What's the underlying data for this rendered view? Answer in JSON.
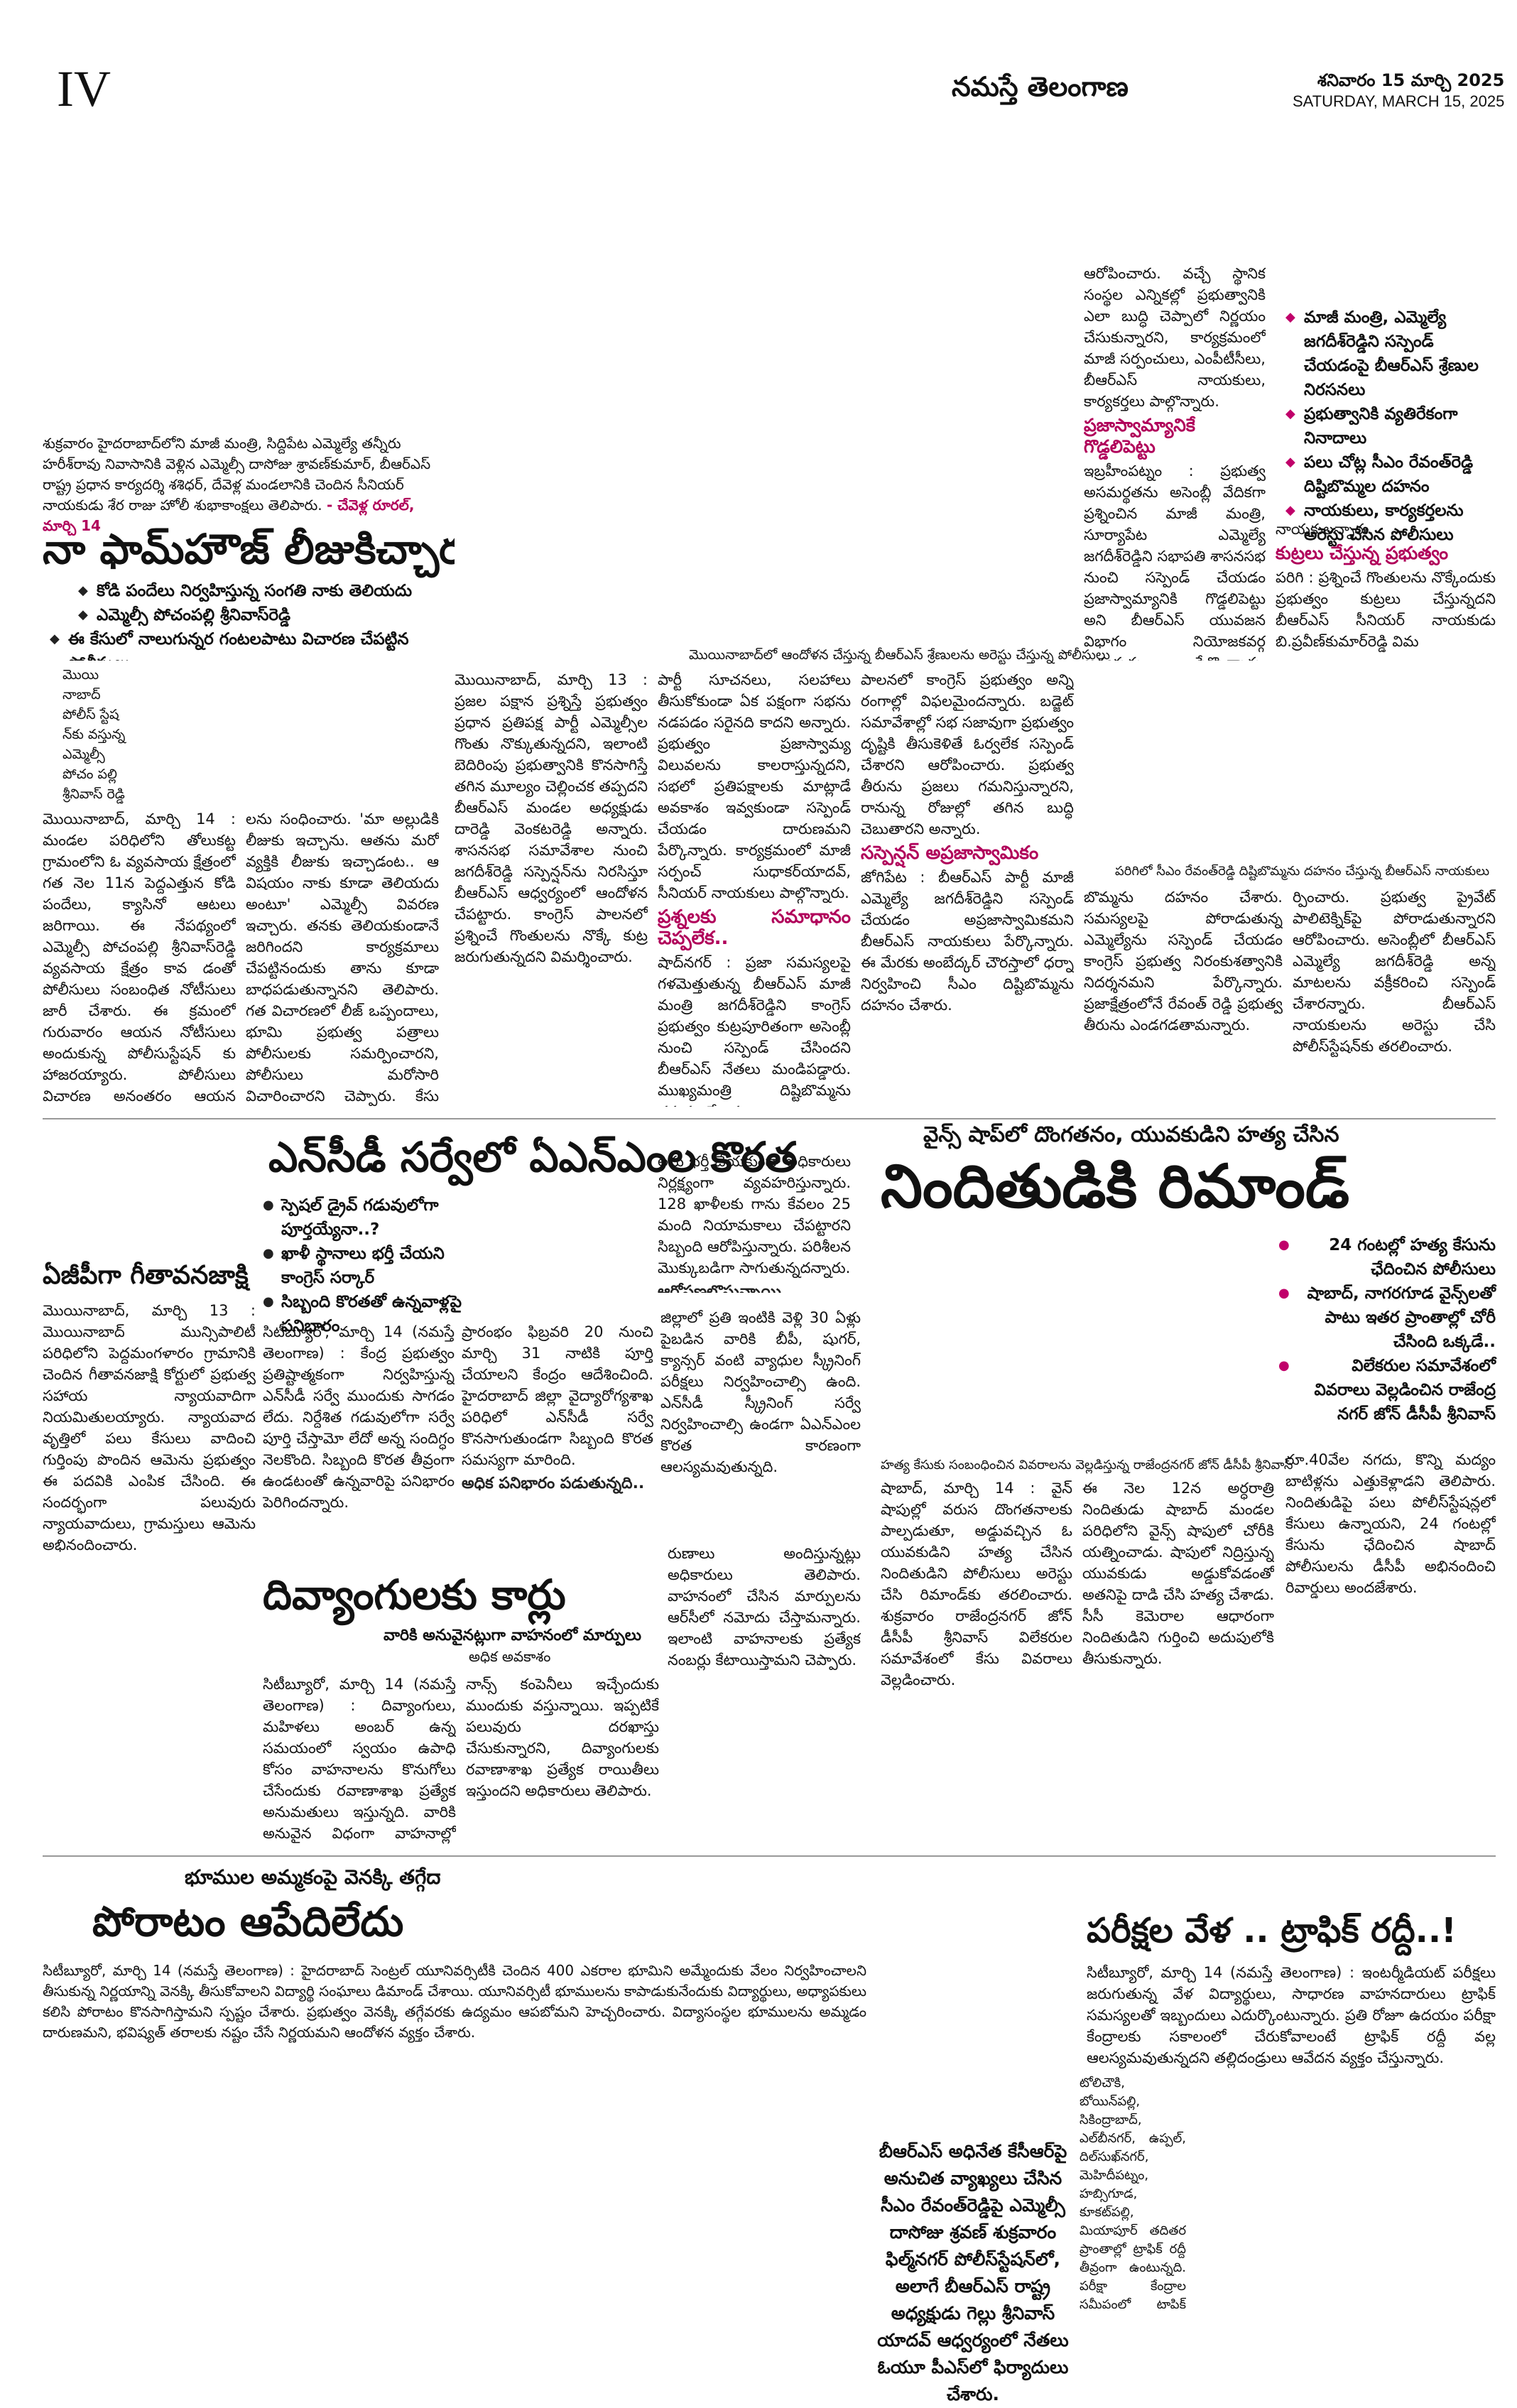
{
  "header": {
    "page_number": "IV",
    "masthead": "నమస్తే తెలంగాణ",
    "date_telugu": "శనివారం 15 మార్చి 2025",
    "date_english": "SATURDAY, MARCH 15, 2025"
  },
  "story_farmhouse": {
    "caption": "శుక్రవారం హైదరాబాద్‌లోని మాజీ మంత్రి, సిద్దిపేట ఎమ్మెల్యే తన్నీరు హరీశ్‌రావు నివాసానికి వెళ్లిన ఎమ్మెల్సీ దాసోజు శ్రావణ్‌కుమార్, బీఆర్‌ఎస్ రాష్ట్ర ప్రధాన కార్యదర్శి శశిధర్, దేవెళ్ల మండలానికి చెందిన సీనియర్ నాయకుడు శేర రాజు హోలీ శుభాకాంక్షలు తెలిపారు.",
    "caption_credit": "- చేవెళ్ల రూరల్, మార్చి 14",
    "headline": "నా ఫామ్‌హౌజ్ లీజుకిచ్చారు",
    "bullets": [
      "కోడి పందేలు నిర్వహిస్తున్న సంగతి నాకు తెలియదు",
      "ఎమ్మెల్సీ పోచంపల్లి శ్రీనివాస్‌రెడ్డి",
      "ఈ కేసులో నాలుగున్నర గంటలపాటు విచారణ చేపట్టిన పోలీసులు"
    ],
    "photo_label": "మొయి నాబాద్ పోలీస్ స్టేష న్‌కు వస్తున్న ఎమ్మెల్సీ పోచం పల్లి శ్రీనివాస్ రెడ్డి",
    "body_col1": "మొయినాబాద్, మార్చి 14 : మండల పరిధిలోని తోలుకట్ట గ్రామంలోని ఓ వ్యవసాయ క్షేత్రంలో గత నెల 11న పెద్దఎత్తున కోడి పందేలు, క్యాసినో ఆటలు జరిగాయి. ఈ నేపథ్యంలో ఎమ్మెల్సీ పోచంపల్లి శ్రీనివాస్‌రెడ్డి వ్యవసాయ క్షేత్రం కావ డంతో పోలీసులు సంబంధిత నోటీసులు జారీ చేశారు. ఈ క్రమంలో గురువారం ఆయన నోటీసులు అందుకున్న పోలీసుస్టేషన్ కు హాజరయ్యారు. పోలీసులు విచారణ అనంతరం ఆయన మీడియాతో మాట్లాడారు. తన వ్యవసాయ క్షేత్రాన్ని లీజుకు ఇచ్చానని, అక్కడ కోడి పందేలు జరుగుతున్నట్టు తనకు తెలియదని చెప్పారు.",
    "body_col2": "లను సంధించారు. 'మా అల్లుడికి లీజుకు ఇచ్చాను. ఆతను మరో వ్యక్తికి లీజుకు ఇచ్చాడంట.. ఆ విషయం నాకు కూడా తెలియదు అంటూ' ఎమ్మెల్సీ వివరణ ఇచ్చారు. తనకు తెలియకుండానే జరిగిందని కార్యక్రమాలు చేపట్టినందుకు తాను కూడా బాధపడుతున్నానని తెలిపారు. గత విచారణలో లీజ్ ఒప్పందాలు, భూమి ప్రభుత్వ పత్రాలు పోలీసులకు సమర్పించారని, పోలీసులు మరోసారి విచారించారని చెప్పారు. కేసు దర్యాప్తులో భాగంగా ఎప్పుడు పిలిచినా హాజరవుతానని ఆయన తెలిపారు.",
    "body_col3": "మొయినాబాద్, మార్చి 13 : ప్రజల పక్షాన ప్రశ్నిస్తే ప్రభుత్వం ప్రధాన ప్రతిపక్ష పార్టీ ఎమ్మెల్సీల గొంతు నొక్కుతున్నదని, ఇలాంటి బెదిరింపు ప్రభుత్వానికి కొనసాగిస్తే తగిన మూల్యం చెల్లించక తప్పదని బీఆర్‌ఎస్ మండల అధ్యక్షుడు దారెడ్డి వెంకటరెడ్డి అన్నారు. శాసనసభ సమావేశాల నుంచి జగదీశ్‌రెడ్డి సస్పెన్షన్‌ను నిరసిస్తూ బీఆర్‌ఎస్ ఆధ్వర్యంలో ఆందోళన చేపట్టారు. కాంగ్రెస్ పాలనలో ప్రశ్నించే గొంతులను నొక్కే కుట్ర జరుగుతున్నదని విమర్శించారు."
  },
  "story_protest": {
    "photo_caption": "మొయినాబాద్‌లో ఆందోళన చేస్తున్న బీఆర్‌ఎస్ శ్రేణులను అరెస్టు చేస్తున్న పోలీసులు",
    "body_a": "పార్టీ సూచనలు, సలహాలు తీసుకోకుండా ఏక పక్షంగా సభను నడపడం సరైనది కాదని అన్నారు. ప్రభుత్వం ప్రజాస్వామ్య విలువలను కాలరాస్తున్నదని, సభలో ప్రతిపక్షాలకు మాట్లాడే అవకాశం ఇవ్వకుండా సస్పెండ్ చేయడం దారుణమని పేర్కొన్నారు. కార్యక్రమంలో మాజీ సర్పంచ్ సుధాకర్‌యాదవ్, సీనియర్ నాయకులు పాల్గొన్నారు.",
    "sub1": "ప్రశ్నలకు సమాధానం చెప్పలేక..",
    "body_b": "షాద్‌నగర్ : ప్రజా సమస్యలపై గళమెత్తుతున్న బీఆర్‌ఎస్ మాజీ మంత్రి జగదీశ్‌రెడ్డిని కాంగ్రెస్ ప్రభుత్వం కుట్రపూరితంగా అసెంబ్లీ నుంచి సస్పెండ్ చేసిందని బీఆర్‌ఎస్ నేతలు మండిపడ్డారు. ముఖ్యమంత్రి దిష్టిబొమ్మను దహనం చేశారు.",
    "body_c": "పాలనలో కాంగ్రెస్ ప్రభుత్వం అన్ని రంగాల్లో విఫలమైందన్నారు. బడ్జెట్ సమావేశాల్లో సభ సజావుగా ప్రభుత్వం దృష్టికి తీసుకెళితే ఓర్వలేక సస్పెండ్ చేశారని ఆరోపించారు. ప్రభుత్వ తీరును ప్రజలు గమనిస్తున్నారని, రానున్న రోజుల్లో తగిన బుద్ధి చెబుతారని అన్నారు.",
    "sub2": "సస్పెన్షన్ అప్రజాస్వామికం",
    "body_d": "జోగిపేట : బీఆర్‌ఎస్ పార్టీ మాజీ ఎమ్మెల్యే జగదీశ్‌రెడ్డిని సస్పెండ్ చేయడం అప్రజాస్వామికమని బీఆర్‌ఎస్ నాయకులు పేర్కొన్నారు. ఈ మేరకు అంబేద్కర్ చౌరస్తాలో ధర్నా నిర్వహించి సీఎం దిష్టిబొమ్మను దహనం చేశారు."
  },
  "story_jagadish": {
    "bullets": [
      "మాజీ మంత్రి, ఎమ్మెల్యే జగదీశ్‌రెడ్డిని సస్పెండ్ చేయడంపై బీఆర్‌ఎస్ శ్రేణుల నిరసనలు",
      "ప్రభుత్వానికి వ్యతిరేకంగా నినాదాలు",
      "పలు చోట్ల సీఎం రేవంత్‌రెడ్డి దిష్టిబొమ్మల దహనం",
      "నాయకులు, కార్యకర్తలను అరెస్టు చేసిన పోలీసులు"
    ],
    "body_a": "ఆరోపించారు. వచ్చే స్థానిక సంస్థల ఎన్నికల్లో ప్రభుత్వానికి ఎలా బుద్ధి చెప్పాలో నిర్ణయం చేసుకున్నారని, కార్యక్రమంలో మాజీ సర్పంచులు, ఎంపీటీసీలు, బీఆర్‌ఎస్ నాయకులు, కార్యకర్తలు పాల్గొన్నారు.",
    "sub_a": "ప్రజాస్వామ్యానికే గొడ్డలిపెట్టు",
    "body_b": "ఇబ్రహీంపట్నం : ప్రభుత్వ అసమర్థతను అసెంబ్లీ వేదికగా ప్రశ్నించిన మాజీ మంత్రి, సూర్యాపేట ఎమ్మెల్యే జగదీశ్‌రెడ్డిని సభాపతి శాసనసభ నుంచి సస్పెండ్ చేయడం ప్రజాస్వామ్యానికి గొడ్డలిపెట్టు అని బీఆర్‌ఎస్ యువజన విభాగం నియోజకవర్గ అధ్యక్షుడు పేర్కొన్నారు. అంబేద్కర్ చౌరస్తాలో సీఎం రేవంత్‌రెడ్డి దిష్టిబొమ్మ దహనం చేశారు.",
    "body_c": "నాయకులన్నారు.",
    "sub_b": "కుట్రలు చేస్తున్న ప్రభుత్వం",
    "body_d": "పరిగి : ప్రశ్నించే గొంతులను నొక్కేందుకు ప్రభుత్వం కుట్రలు చేస్తున్నదని బీఆర్‌ఎస్ సీనియర్ నాయకుడు బి.ప్రవీణ్‌కుమార్‌రెడ్డి విమ",
    "photo_caption": "పరిగిలో సీఎం రేవంత్‌రెడ్డి దిష్టిబొమ్మను దహనం చేస్తున్న బీఆర్‌ఎస్ నాయకులు",
    "body_e": "బొమ్మను దహనం చేశారు. సమస్యలపై పోరాడుతున్న ఎమ్మెల్యేను సస్పెండ్ చేయడం కాంగ్రెస్ ప్రభుత్వ నిరంకుశత్వానికి నిదర్శనమని పేర్కొన్నారు. ప్రజాక్షేత్రంలోనే రేవంత్ రెడ్డి ప్రభుత్వ తీరును ఎండగడతామన్నారు.",
    "body_f": "ర్పించారు. ప్రభుత్వ ప్రైవేట్ పాలిటెక్నిక్‌పై పోరాడుతున్నారని ఆరోపించారు. అసెంబ్లీలో బీఆర్‌ఎస్ ఎమ్మెల్యే జగదీశ్‌రెడ్డి అన్న మాటలను వక్రీకరించి సస్పెండ్ చేశారన్నారు. బీఆర్‌ఎస్ నాయకులను అరెస్టు చేసి పోలీస్‌స్టేషన్‌కు తరలించారు."
  },
  "story_ncd": {
    "headline": "ఎన్‌సీడీ సర్వేలో ఏఎన్‌ఎంల కొరత",
    "bullets": [
      "స్పెషల్ డ్రైవ్ గడువులోగా పూర్తయ్యేనా..?",
      "ఖాళీ స్థానాలు భర్తీ చేయని కాంగ్రెస్ సర్కార్",
      "సిబ్బంది కొరతతో ఉన్నవాళ్లపై పనిభారం"
    ],
    "col1": "సిటీబ్యూరో, మార్చి 14 (నమస్తే తెలంగాణ) : కేంద్ర ప్రభుత్వం ప్రతిష్టాత్మకంగా నిర్వహిస్తున్న ఎన్‌సీడీ సర్వే ముందుకు సాగడం లేదు. నిర్దేశిత గడువులోగా సర్వే పూర్తి చేస్తామో లేదో అన్న సందిగ్ధం నెలకొంది. సిబ్బంది కొరత తీవ్రంగా ఉండటంతో ఉన్నవారిపై పనిభారం పెరిగిందన్నారు.",
    "col2": "ప్రారంభం ఫిబ్రవరి 20 నుంచి మార్చి 31 నాటికి పూర్తి చేయాలని కేంద్రం ఆదేశించింది. హైదరాబాద్ జిల్లా వైద్యారోగ్యశాఖ పరిధిలో ఎన్‌సీడీ సర్వే కొనసాగుతుండగా సిబ్బంది కొరత సమస్యగా మారింది.",
    "sub": "అధిక పనిభారం పడుతున్నది..",
    "col3": "లను భర్తీ చేయకుండా అధికారులు నిర్లక్ష్యంగా వ్యవహరిస్తున్నారు. 128 ఖాళీలకు గాను కేవలం 25 మంది నియామకాలు చేపట్టారని సిబ్బంది ఆరోపిస్తున్నారు. పరిశీలన మొక్కుబడిగా సాగుతున్నదన్నారు.",
    "sub2": "ఆరోపణలొస్తున్నాయి..",
    "col4": "జిల్లాలో ప్రతి ఇంటికి వెళ్లి 30 ఏళ్లు పైబడిన వారికి బీపీ, షుగర్, క్యాన్సర్ వంటి వ్యాధుల స్క్రీనింగ్ పరీక్షలు నిర్వహించాల్సి ఉంది. ఎన్‌సీడీ స్క్రీనింగ్ సర్వే నిర్వహించాల్సి ఉండగా ఏఎన్‌ఎంల కొరత కారణంగా ఆలస్యమవుతున్నది."
  },
  "story_geetha": {
    "headline": "ఏజీపీగా గీతావనజాక్షి",
    "body": "మొయినాబాద్, మార్చి 13 : మొయినాబాద్ మున్సిపాలిటీ పరిధిలోని పెద్దమంగళారం గ్రామానికి చెందిన గీతావనజాక్షి కోర్టులో ప్రభుత్వ సహాయ న్యాయవాదిగా నియమితులయ్యారు. న్యాయవాద వృత్తిలో పలు కేసులు వాదించి గుర్తింపు పొందిన ఆమెను ప్రభుత్వం ఈ పదవికి ఎంపిక చేసింది. ఈ సందర్భంగా పలువురు న్యాయవాదులు, గ్రామస్తులు ఆమెను అభినందించారు."
  },
  "story_disabled": {
    "headline": "దివ్యాంగులకు కార్లు",
    "kicker": "వారికి అనువైనట్లుగా వాహనంలో మార్పులు",
    "subkicker": "అధిక అవకాశం",
    "col1": "సిటీబ్యూరో, మార్చి 14 (నమస్తే తెలంగాణ) : దివ్యాంగులు, మహిళలు అంబర్ ఉన్న సమయంలో స్వయం ఉపాధి కోసం వాహనాలను కొనుగోలు చేసేందుకు రవాణాశాఖ ప్రత్యేక అనుమతులు ఇస్తున్నది. వారికి అనువైన విధంగా వాహనాల్లో మార్పులు చేసి ఇవ్వనున్నారు.",
    "col2": "నాన్స్ కంపెనీలు ఇచ్చేందుకు ముందుకు వస్తున్నాయి. ఇప్పటికే పలువురు దరఖాస్తు చేసుకున్నారని, దివ్యాంగులకు రవాణాశాఖ ప్రత్యేక రాయితీలు ఇస్తుందని అధికారులు తెలిపారు.",
    "col3": "రుణాలు అందిస్తున్నట్లు అధికారులు తెలిపారు. వాహనంలో చేసిన మార్పులను ఆర్‌సీలో నమోదు చేస్తామన్నారు. ఇలాంటి వాహనాలకు ప్రత్యేక నంబర్లు కేటాయిస్తామని చెప్పారు."
  },
  "story_remand": {
    "kicker": "వైన్స్ షాప్‌లో దొంగతనం, యువకుడిని హత్య చేసిన",
    "headline": "నిందితుడికి రిమాండ్",
    "bullets": [
      "24 గంటల్లో హత్య కేసును ఛేదించిన పోలీసులు",
      "షాబాద్, నాగరగూడ వైన్స్‌లతో పాటు ఇతర ప్రాంతాల్లో చోరీ చేసింది ఒక్కడే..",
      "విలేకరుల సమావేశంలో వివరాలు వెల్లడించిన రాజేంద్ర నగర్ జోన్ డీసీపీ శ్రీనివాస్"
    ],
    "photo_caption": "హత్య కేసుకు సంబంధించిన వివరాలను వెల్లడిస్తున్న రాజేంద్రనగర్ జోన్ డీసీపీ శ్రీనివాస్",
    "col1": "షాబాద్, మార్చి 14 : వైన్ షాపుల్లో వరుస దొంగతనాలకు పాల్పడుతూ, అడ్డువచ్చిన ఓ యువకుడిని హత్య చేసిన నిందితుడిని పోలీసులు అరెస్టు చేసి రిమాండ్‌కు తరలించారు. శుక్రవారం రాజేంద్రనగర్ జోన్ డీసీపీ శ్రీనివాస్ విలేకరుల సమావేశంలో కేసు వివరాలు వెల్లడించారు.",
    "col2": "ఈ నెల 12న అర్ధరాత్రి నిందితుడు షాబాద్ మండల పరిధిలోని వైన్స్ షాపులో చోరీకి యత్నించాడు. షాపులో నిద్రిస్తున్న యువకుడు అడ్డుకోవడంతో అతనిపై దాడి చేసి హత్య చేశాడు. సీసీ కెమెరాల ఆధారంగా నిందితుడిని గుర్తించి అదుపులోకి తీసుకున్నారు.",
    "col3": "రూ.40వేల నగదు, కొన్ని మద్యం బాటిళ్లను ఎత్తుకెళ్లాడని తెలిపారు. నిందితుడిపై పలు పోలీస్‌స్టేషన్లలో కేసులు ఉన్నాయని, 24 గంటల్లో కేసును ఛేదించిన షాబాద్ పోలీసులను డీసీపీ అభినందించి రివార్డులు అందజేశారు."
  },
  "story_land": {
    "kicker": "భూముల అమ్మకంపై వెనక్కి తగ్గేదాకా",
    "headline": "పోరాటం ఆపేదిలేదు",
    "body": "సిటీబ్యూరో, మార్చి 14 (నమస్తే తెలంగాణ) : హైదరాబాద్ సెంట్రల్ యూనివర్సిటీకి చెందిన 400 ఎకరాల భూమిని అమ్మేందుకు వేలం నిర్వహించాలని తీసుకున్న నిర్ణయాన్ని వెనక్కి తీసుకోవాలని విద్యార్థి సంఘాలు డిమాండ్ చేశాయి. యూనివర్సిటీ భూములను కాపాడుకునేందుకు విద్యార్థులు, అధ్యాపకులు కలిసి పోరాటం కొనసాగిస్తామని స్పష్టం చేశారు. ప్రభుత్వం వెనక్కి తగ్గేవరకు ఉద్యమం ఆపబోమని హెచ్చరించారు. విద్యాసంస్థల భూములను అమ్మడం దారుణమని, భవిష్యత్ తరాలకు నష్టం చేసే నిర్ణయమని ఆందోళన వ్యక్తం చేశారు."
  },
  "story_traffic": {
    "headline": "పరీక్షల వేళ .. ట్రాఫిక్ రద్దీ..!",
    "body1": "సిటీబ్యూరో, మార్చి 14 (నమస్తే తెలంగాణ) : ఇంటర్మీడియట్ పరీక్షలు జరుగుతున్న వేళ విద్యార్థులు, సాధారణ వాహనదారులు ట్రాఫిక్ సమస్యలతో ఇబ్బందులు ఎదుర్కొంటున్నారు. ప్రతి రోజూ ఉదయం పరీక్షా కేంద్రాలకు సకాలంలో చేరుకోవాలంటే ట్రాఫిక్ రద్దీ వల్ల ఆలస్యమవుతున్నదని తల్లిదండ్రులు ఆవేదన వ్యక్తం చేస్తున్నారు.",
    "body2": "టోలిచౌకి, బోయిన్‌పల్లి, సికింద్రాబాద్, ఎల్‌బీనగర్, ఉప్పల్, దిల్‌సుఖ్‌నగర్, మెహిదీపట్నం, హబ్సిగూడ, కూకట్‌పల్లి, మియాపూర్ తదితర ప్రాంతాల్లో ట్రాఫిక్ రద్దీ తీవ్రంగా ఉంటున్నది. పరీక్షా కేంద్రాల సమీపంలో ట్రాఫిక్ పోలీసులు ప్రత్యేక ఏర్పాట్లు చేయాలని కోరుతున్నారు.",
    "quote": "బీఆర్‌ఎస్ అధినేత కేసీఆర్‌పై అనుచిత వ్యాఖ్యలు చేసిన సీఎం రేవంత్‌రెడ్డిపై ఎమ్మెల్సీ దాసోజు శ్రవణ్ శుక్రవారం ఫిల్మ్‌నగర్ పోలీస్‌స్టేషన్‌లో, అలాగే బీఆర్‌ఎస్ రాష్ట్ర అధ్యక్షుడు గెల్లు శ్రీనివాస్ యాదవ్ ఆధ్వర్యంలో నేతలు ఓయూ పీఎస్‌లో ఫిర్యాదులు చేశారు."
  }
}
